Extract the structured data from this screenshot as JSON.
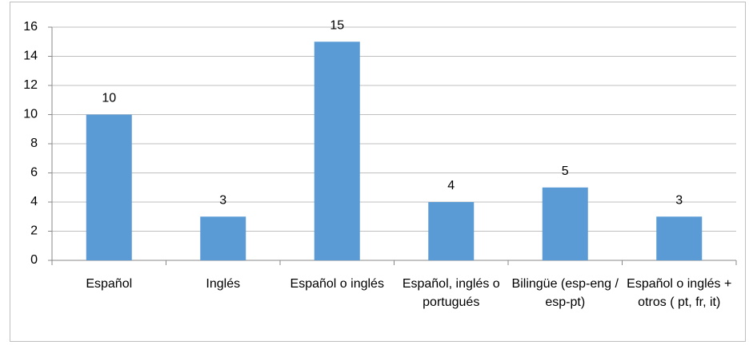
{
  "chart_data": {
    "type": "bar",
    "categories": [
      "Español",
      "Inglés",
      "Español o inglés",
      "Español, inglés o portugués",
      "Bilingüe (esp-eng / esp-pt)",
      "Español o inglés + otros ( pt, fr, it)"
    ],
    "values": [
      10,
      3,
      15,
      4,
      5,
      3
    ],
    "color": "#5b9bd5",
    "ylim": [
      0,
      16
    ],
    "yticks": [
      0,
      2,
      4,
      6,
      8,
      10,
      12,
      14,
      16
    ],
    "grid": true
  }
}
